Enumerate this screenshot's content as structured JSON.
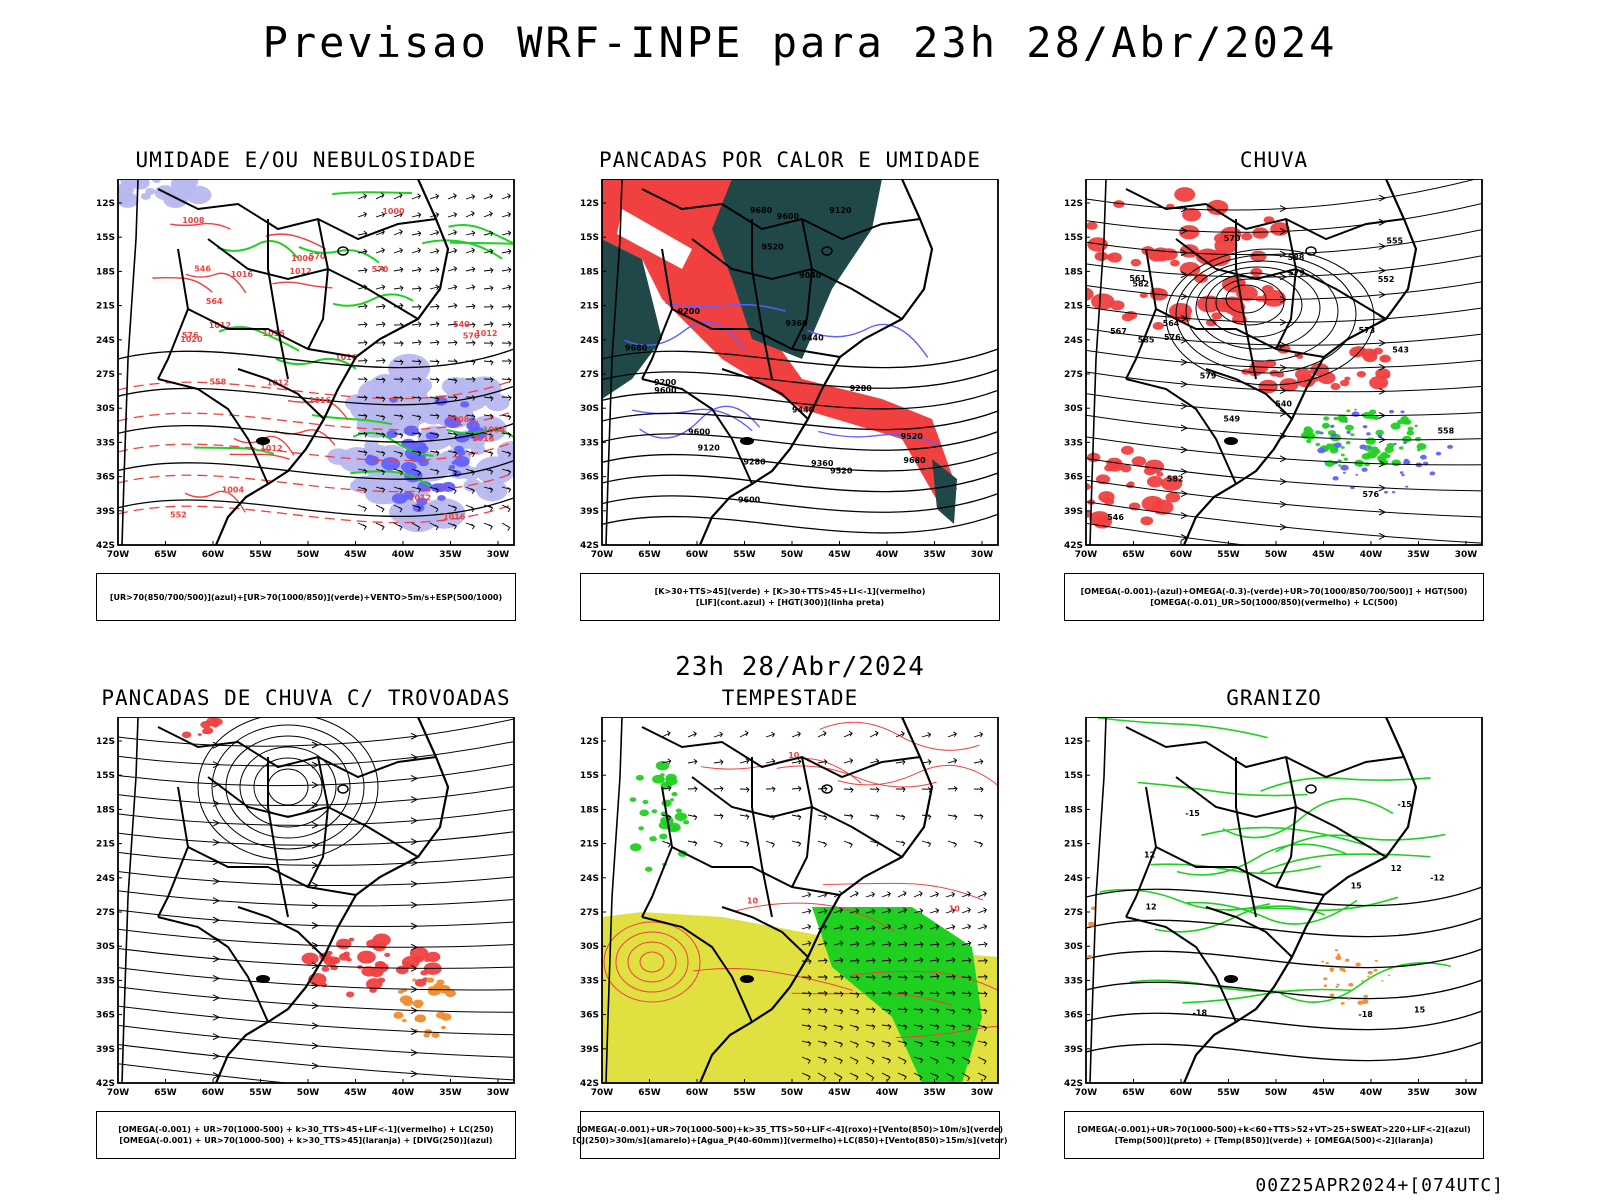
{
  "title": "Previsao WRF-INPE  para 23h 28/Abr/2024",
  "subtitle": "23h 28/Abr/2024",
  "footer": "00Z25APR2024+[074UTC]",
  "lat_ticks": [
    "12S",
    "15S",
    "18S",
    "21S",
    "24S",
    "27S",
    "30S",
    "33S",
    "36S",
    "39S",
    "42S"
  ],
  "lon_ticks": [
    "70W",
    "65W",
    "60W",
    "55W",
    "50W",
    "45W",
    "40W",
    "35W",
    "30W"
  ],
  "colors": {
    "red": "#f04040",
    "blue": "#6060ff",
    "lightblue": "#b8b8f0",
    "green": "#20d020",
    "darkgreen": "#204848",
    "yellow": "#e0e040",
    "orange": "#f08c30"
  },
  "panels": [
    {
      "title": "UMIDADE E/OU NEBULOSIDADE",
      "legend": [
        "[UR>70(850/700/500)](azul)+[UR>70(1000/850)](verde)+VENTO>5m/s+ESP(500/1000)"
      ],
      "contour_labels": [
        "1012",
        "1012",
        "1012",
        "1020",
        "1016",
        "1008",
        "1016",
        "1012",
        "1008",
        "1016",
        "1012",
        "1004",
        "1000",
        "1016",
        "1016",
        "1012",
        "1004",
        "1000",
        "1016",
        "570",
        "564",
        "558",
        "552",
        "546",
        "540",
        "576",
        "570",
        "570"
      ]
    },
    {
      "title": "PANCADAS POR CALOR E UMIDADE",
      "legend": [
        "[K>30+TTS>45](verde) + [K>30+TTS>45+LI<-1](vermelho)",
        "[LIF](cont.azul) + [HGT(300)](linha preta)"
      ],
      "contour_labels": [
        "9680",
        "9680",
        "9680",
        "9600",
        "9600",
        "9520",
        "9600",
        "9520",
        "9440",
        "9360",
        "9280",
        "9200",
        "9120",
        "9040",
        "9280",
        "9200",
        "9120",
        "9360",
        "9440",
        "9520",
        "9600"
      ]
    },
    {
      "title": "CHUVA",
      "legend": [
        "[OMEGA(-0.001)-(azul)+OMEGA(-0.3)-(verde)+UR>70(1000/850/700/500)] + HGT(500)",
        "[OMEGA(-0.01)_UR>50(1000/850)(vermelho) + LC(500)"
      ],
      "contour_labels": [
        "588",
        "585",
        "582",
        "579",
        "576",
        "573",
        "570",
        "567",
        "564",
        "561",
        "558",
        "555",
        "552",
        "549",
        "546",
        "543",
        "540",
        "582",
        "579",
        "576"
      ]
    },
    {
      "title": "PANCADAS DE CHUVA C/ TROVOADAS",
      "legend": [
        "[OMEGA(-0.001) + UR>70(1000-500) + k>30_TTS>45+LIF<-1](vermelho) + LC(250)",
        "[OMEGA(-0.001) + UR>70(1000-500) + k>30_TTS>45](laranja) + [DIVG(250)](azul)"
      ],
      "contour_labels": []
    },
    {
      "title": "TEMPESTADE",
      "legend": [
        "[OMEGA(-0.001)+UR>70(1000-500)+k>35_TTS>50+LIF<-4](roxo)+[Vento(850)>10m/s](verde)",
        "[CJ(250)>30m/s](amarelo)+[Agua_P(40-60mm)](vermelho)+LC(850)+[Vento(850)>15m/s](vetor)"
      ],
      "contour_labels": [
        "10",
        "10",
        "10"
      ]
    },
    {
      "title": "GRANIZO",
      "legend": [
        "[OMEGA(-0.001)+UR>70(1000-500)+k<60+TTS>52+VT>25+SWEAT>220+LIF<-2](azul)",
        "[Temp(500)](preto) + [Temp(850)](verde) + [OMEGA(500)<-2](laranja)"
      ],
      "contour_labels": [
        "-15",
        "-12",
        "-18",
        "-15",
        "-18",
        "12",
        "15",
        "12",
        "12",
        "15"
      ]
    }
  ]
}
